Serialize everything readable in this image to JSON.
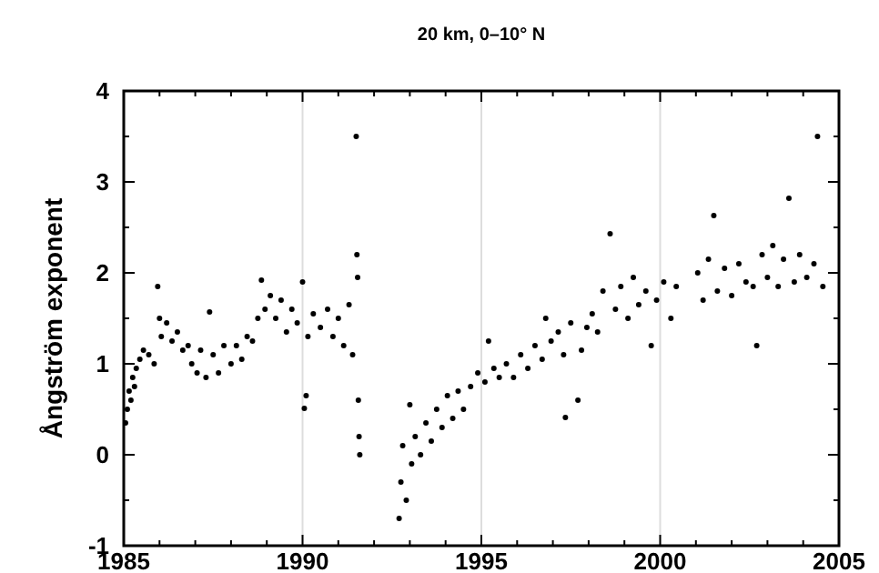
{
  "chart_data": {
    "type": "scatter",
    "title": "20 km, 0–10° N",
    "ylabel": "Ångström exponent",
    "xlim": [
      1985,
      2005
    ],
    "xticks": [
      1985,
      {
        "value": 1986,
        "label": null
      },
      {
        "value": 1987,
        "label": null
      },
      {
        "value": 1988,
        "label": null
      },
      {
        "value": 1989,
        "label": null
      },
      1990,
      {
        "value": 1991,
        "label": null
      },
      {
        "value": 1992,
        "label": null
      },
      {
        "value": 1993,
        "label": null
      },
      {
        "value": 1994,
        "label": null
      },
      1995,
      {
        "value": 1996,
        "label": null
      },
      {
        "value": 1997,
        "label": null
      },
      {
        "value": 1998,
        "label": null
      },
      {
        "value": 1999,
        "label": null
      },
      2000,
      {
        "value": 2001,
        "label": null
      },
      {
        "value": 2002,
        "label": null
      },
      {
        "value": 2003,
        "label": null
      },
      {
        "value": 2004,
        "label": null
      },
      2005
    ],
    "ylim": [
      -1,
      4
    ],
    "yticks": [
      -1,
      {
        "value": -0.5,
        "label": null
      },
      0,
      {
        "value": 0.5,
        "label": null
      },
      1,
      {
        "value": 1.5,
        "label": null
      },
      2,
      {
        "value": 2.5,
        "label": null
      },
      3,
      {
        "value": 3.5,
        "label": null
      },
      4
    ],
    "grid": "x",
    "marker": "circle",
    "series": [
      {
        "color": "#000000",
        "x": [
          1985.05,
          1985.1,
          1985.15,
          1985.2,
          1985.25,
          1985.3,
          1985.35,
          1985.45,
          1985.55,
          1985.7,
          1985.85,
          1985.95,
          1986.0,
          1986.05,
          1986.2,
          1986.35,
          1986.5,
          1986.65,
          1986.8,
          1986.9,
          1987.05,
          1987.15,
          1987.3,
          1987.4,
          1987.5,
          1987.65,
          1987.8,
          1988.0,
          1988.15,
          1988.3,
          1988.45,
          1988.6,
          1988.75,
          1988.85,
          1988.95,
          1989.1,
          1989.25,
          1989.4,
          1989.55,
          1989.7,
          1989.85,
          1990.0,
          1990.05,
          1990.1,
          1990.15,
          1990.3,
          1990.5,
          1990.7,
          1990.85,
          1991.0,
          1991.15,
          1991.3,
          1991.4,
          1991.5,
          1991.52,
          1991.54,
          1991.56,
          1991.58,
          1991.6,
          1992.7,
          1992.75,
          1992.8,
          1992.9,
          1993.0,
          1993.05,
          1993.15,
          1993.3,
          1993.45,
          1993.6,
          1993.75,
          1993.9,
          1994.05,
          1994.2,
          1994.35,
          1994.5,
          1994.7,
          1994.9,
          1995.1,
          1995.2,
          1995.35,
          1995.5,
          1995.7,
          1995.9,
          1996.1,
          1996.3,
          1996.5,
          1996.7,
          1996.8,
          1996.95,
          1997.15,
          1997.3,
          1997.35,
          1997.5,
          1997.7,
          1997.8,
          1997.95,
          1998.1,
          1998.25,
          1998.4,
          1998.6,
          1998.75,
          1998.9,
          1999.1,
          1999.25,
          1999.4,
          1999.6,
          1999.75,
          1999.9,
          2000.1,
          2000.3,
          2000.45,
          2001.05,
          2001.2,
          2001.35,
          2001.5,
          2001.6,
          2001.8,
          2002.0,
          2002.2,
          2002.4,
          2002.6,
          2002.7,
          2002.85,
          2003.0,
          2003.15,
          2003.3,
          2003.45,
          2003.6,
          2003.75,
          2003.9,
          2004.1,
          2004.3,
          2004.4,
          2004.55
        ],
        "values": [
          0.35,
          0.5,
          0.7,
          0.6,
          0.85,
          0.75,
          0.95,
          1.05,
          1.15,
          1.1,
          1.0,
          1.85,
          1.5,
          1.3,
          1.45,
          1.25,
          1.35,
          1.15,
          1.2,
          1.0,
          0.9,
          1.15,
          0.85,
          1.57,
          1.1,
          0.9,
          1.2,
          1.0,
          1.2,
          1.05,
          1.3,
          1.25,
          1.5,
          1.92,
          1.6,
          1.75,
          1.5,
          1.7,
          1.35,
          1.6,
          1.45,
          1.9,
          0.51,
          0.65,
          1.3,
          1.55,
          1.4,
          1.6,
          1.3,
          1.5,
          1.2,
          1.65,
          1.1,
          3.5,
          2.2,
          1.95,
          0.6,
          0.2,
          0.0,
          -0.7,
          -0.3,
          0.1,
          -0.5,
          0.55,
          -0.1,
          0.2,
          0.0,
          0.35,
          0.15,
          0.5,
          0.3,
          0.65,
          0.4,
          0.7,
          0.5,
          0.75,
          0.9,
          0.8,
          1.25,
          0.95,
          0.85,
          1.0,
          0.85,
          1.1,
          0.95,
          1.2,
          1.05,
          1.5,
          1.25,
          1.35,
          1.1,
          0.41,
          1.45,
          0.6,
          1.15,
          1.4,
          1.55,
          1.35,
          1.8,
          2.43,
          1.6,
          1.85,
          1.5,
          1.95,
          1.65,
          1.8,
          1.2,
          1.7,
          1.9,
          1.5,
          1.85,
          2.0,
          1.7,
          2.15,
          2.63,
          1.8,
          2.05,
          1.75,
          2.1,
          1.9,
          1.85,
          1.2,
          2.2,
          1.95,
          2.3,
          1.85,
          2.15,
          2.82,
          1.9,
          2.2,
          1.95,
          2.1,
          3.5,
          1.85
        ]
      }
    ]
  }
}
